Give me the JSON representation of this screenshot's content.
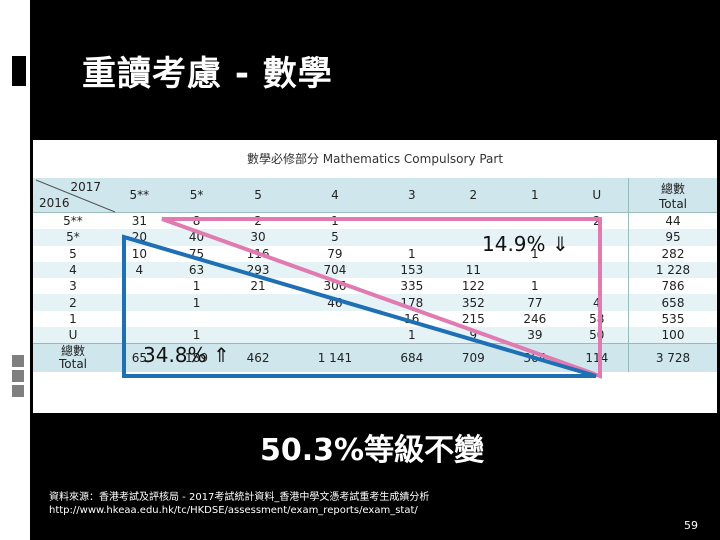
{
  "slide": {
    "title": "重讀考慮 - 數學",
    "summary": "50.3%等級不變",
    "page_number": "59"
  },
  "table": {
    "caption": "數學必修部分 Mathematics Compulsory Part",
    "corner_top": "2017",
    "corner_bottom": "2016",
    "col_headers": [
      "5**",
      "5*",
      "5",
      "4",
      "3",
      "2",
      "1",
      "U"
    ],
    "total_header": "總數\nTotal",
    "rows": [
      {
        "label": "5**",
        "cells": [
          "31",
          "8",
          "2",
          "1",
          "",
          "",
          "",
          "2"
        ],
        "total": "44"
      },
      {
        "label": "5*",
        "cells": [
          "20",
          "40",
          "30",
          "5",
          "",
          "",
          "",
          ""
        ],
        "total": "95"
      },
      {
        "label": "5",
        "cells": [
          "10",
          "75",
          "116",
          "79",
          "1",
          "",
          "1",
          ""
        ],
        "total": "282"
      },
      {
        "label": "4",
        "cells": [
          "4",
          "63",
          "293",
          "704",
          "153",
          "11",
          "",
          ""
        ],
        "total": "1 228"
      },
      {
        "label": "3",
        "cells": [
          "",
          "1",
          "21",
          "306",
          "335",
          "122",
          "1",
          ""
        ],
        "total": "786"
      },
      {
        "label": "2",
        "cells": [
          "",
          "1",
          "",
          "46",
          "178",
          "352",
          "77",
          "4"
        ],
        "total": "658"
      },
      {
        "label": "1",
        "cells": [
          "",
          "",
          "",
          "",
          "16",
          "215",
          "246",
          "58"
        ],
        "total": "535"
      },
      {
        "label": "U",
        "cells": [
          "",
          "1",
          "",
          "",
          "1",
          "9",
          "39",
          "50"
        ],
        "total": "100"
      }
    ],
    "footer_label": "總數\nTotal",
    "footer_cells": [
      "65",
      "189",
      "462",
      "1 141",
      "684",
      "709",
      "364",
      "114"
    ],
    "footer_total": "3 728"
  },
  "annotations": {
    "upper_triangle": "14.9%",
    "upper_arrow": "⇓",
    "lower_triangle": "34.8%",
    "lower_arrow": "⇑",
    "upper_color": "#e07ab0",
    "lower_color": "#1f6fb5"
  },
  "source": {
    "line1": "資料來源：香港考試及評核局 - 2017考試統計資料_香港中學文憑考試重考生成績分析",
    "line2": "http://www.hkeaa.edu.hk/tc/HKDSE/assessment/exam_reports/exam_stat/"
  }
}
